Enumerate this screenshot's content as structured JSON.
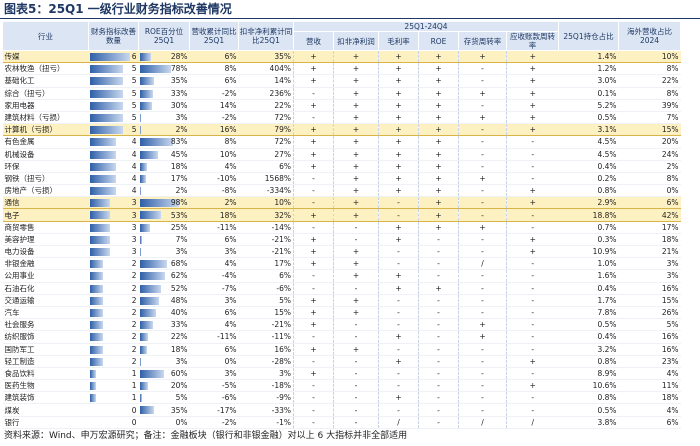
{
  "header": {
    "title": "图表5：25Q1 一级行业财务指标改善情况"
  },
  "table": {
    "columns": [
      "行业",
      "财务指标改善数量",
      "ROE百分位 25Q1",
      "营收累计同比25Q1",
      "扣非净利累计同比25Q1",
      "25Q1持仓占比",
      "海外营收占比2024"
    ],
    "group_header": "25Q1-24Q4",
    "sub_columns": [
      "营收",
      "扣非净利润",
      "毛利率",
      "ROE",
      "存货周转率",
      "应收账款周转率"
    ],
    "rows": [
      [
        "传媒",
        6,
        "28%",
        "6%",
        "35%",
        "+",
        "+",
        "+",
        "+",
        "+",
        "+",
        "1.4%",
        "10%"
      ],
      [
        "农林牧渔（扭亏）",
        5,
        "78%",
        "8%",
        "404%",
        "+",
        "+",
        "+",
        "+",
        "-",
        "+",
        "1.2%",
        "8%"
      ],
      [
        "基础化工",
        5,
        "35%",
        "6%",
        "14%",
        "+",
        "+",
        "+",
        "+",
        "-",
        "+",
        "3.0%",
        "22%"
      ],
      [
        "综合（扭亏）",
        5,
        "33%",
        "-2%",
        "236%",
        "-",
        "+",
        "+",
        "+",
        "+",
        "+",
        "0.1%",
        "8%"
      ],
      [
        "家用电器",
        5,
        "30%",
        "14%",
        "22%",
        "+",
        "+",
        "+",
        "+",
        "-",
        "+",
        "5.2%",
        "39%"
      ],
      [
        "建筑材料（亏损）",
        5,
        "3%",
        "-2%",
        "72%",
        "-",
        "+",
        "+",
        "+",
        "+",
        "+",
        "0.5%",
        "7%"
      ],
      [
        "计算机（亏损）",
        5,
        "2%",
        "16%",
        "79%",
        "+",
        "+",
        "+",
        "+",
        "-",
        "+",
        "3.1%",
        "15%"
      ],
      [
        "有色金属",
        4,
        "83%",
        "8%",
        "72%",
        "+",
        "+",
        "+",
        "+",
        "-",
        "-",
        "4.5%",
        "20%"
      ],
      [
        "机械设备",
        4,
        "45%",
        "10%",
        "27%",
        "+",
        "+",
        "+",
        "+",
        "-",
        "-",
        "4.5%",
        "24%"
      ],
      [
        "环保",
        4,
        "18%",
        "4%",
        "6%",
        "+",
        "+",
        "+",
        "+",
        "-",
        "-",
        "0.4%",
        "2%"
      ],
      [
        "钢铁（扭亏）",
        4,
        "17%",
        "-10%",
        "1568%",
        "-",
        "+",
        "+",
        "+",
        "+",
        "-",
        "0.2%",
        "8%"
      ],
      [
        "房地产（亏损）",
        4,
        "2%",
        "-8%",
        "-334%",
        "-",
        "+",
        "+",
        "+",
        "-",
        "+",
        "0.8%",
        "0%"
      ],
      [
        "通信",
        3,
        "98%",
        "2%",
        "10%",
        "-",
        "+",
        "-",
        "+",
        "-",
        "+",
        "2.9%",
        "6%"
      ],
      [
        "电子",
        3,
        "53%",
        "18%",
        "32%",
        "+",
        "+",
        "-",
        "+",
        "-",
        "-",
        "18.8%",
        "42%"
      ],
      [
        "商贸零售",
        3,
        "25%",
        "-11%",
        "-14%",
        "-",
        "-",
        "+",
        "+",
        "+",
        "-",
        "0.7%",
        "17%"
      ],
      [
        "美容护理",
        3,
        "7%",
        "6%",
        "-21%",
        "+",
        "-",
        "+",
        "-",
        "-",
        "+",
        "0.3%",
        "18%"
      ],
      [
        "电力设备",
        3,
        "3%",
        "3%",
        "-21%",
        "+",
        "+",
        "-",
        "-",
        "-",
        "+",
        "10.9%",
        "21%"
      ],
      [
        "非银金融",
        2,
        "68%",
        "4%",
        "17%",
        "+",
        "+",
        "-",
        "-",
        "/",
        "-",
        "1.0%",
        "3%"
      ],
      [
        "公用事业",
        2,
        "62%",
        "-4%",
        "6%",
        "-",
        "+",
        "+",
        "-",
        "-",
        "-",
        "1.6%",
        "3%"
      ],
      [
        "石油石化",
        2,
        "52%",
        "-7%",
        "-6%",
        "-",
        "-",
        "+",
        "+",
        "-",
        "-",
        "0.4%",
        "16%"
      ],
      [
        "交通运输",
        2,
        "48%",
        "3%",
        "5%",
        "+",
        "+",
        "-",
        "-",
        "-",
        "-",
        "1.7%",
        "15%"
      ],
      [
        "汽车",
        2,
        "40%",
        "6%",
        "15%",
        "+",
        "+",
        "-",
        "-",
        "-",
        "-",
        "7.8%",
        "26%"
      ],
      [
        "社会服务",
        2,
        "33%",
        "4%",
        "-21%",
        "+",
        "-",
        "-",
        "-",
        "+",
        "-",
        "0.5%",
        "5%"
      ],
      [
        "纺织服饰",
        2,
        "22%",
        "-11%",
        "-11%",
        "-",
        "-",
        "+",
        "-",
        "+",
        "-",
        "0.4%",
        "16%"
      ],
      [
        "国防军工",
        2,
        "18%",
        "6%",
        "16%",
        "+",
        "+",
        "-",
        "-",
        "-",
        "-",
        "3.2%",
        "16%"
      ],
      [
        "轻工制造",
        2,
        "3%",
        "0%",
        "-28%",
        "-",
        "-",
        "+",
        "-",
        "-",
        "+",
        "0.8%",
        "23%"
      ],
      [
        "食品饮料",
        1,
        "60%",
        "3%",
        "3%",
        "+",
        "-",
        "-",
        "-",
        "-",
        "-",
        "8.9%",
        "4%"
      ],
      [
        "医药生物",
        1,
        "20%",
        "-5%",
        "-18%",
        "-",
        "-",
        "-",
        "-",
        "-",
        "+",
        "10.6%",
        "11%"
      ],
      [
        "建筑装饰",
        1,
        "5%",
        "-6%",
        "-9%",
        "-",
        "-",
        "+",
        "-",
        "-",
        "-",
        "0.8%",
        "18%"
      ],
      [
        "煤炭",
        0,
        "35%",
        "-17%",
        "-33%",
        "-",
        "-",
        "-",
        "-",
        "-",
        "-",
        "0.5%",
        "4%"
      ],
      [
        "银行",
        0,
        "0%",
        "-2%",
        "-1%",
        "-",
        "-",
        "/",
        "-",
        "/",
        "/",
        "3.8%",
        "6%"
      ]
    ]
  },
  "footer": "资料来源：Wind、申万宏源研究；备注：金融板块（银行和非银金融）对以上 6 大指标并非全部适用"
}
